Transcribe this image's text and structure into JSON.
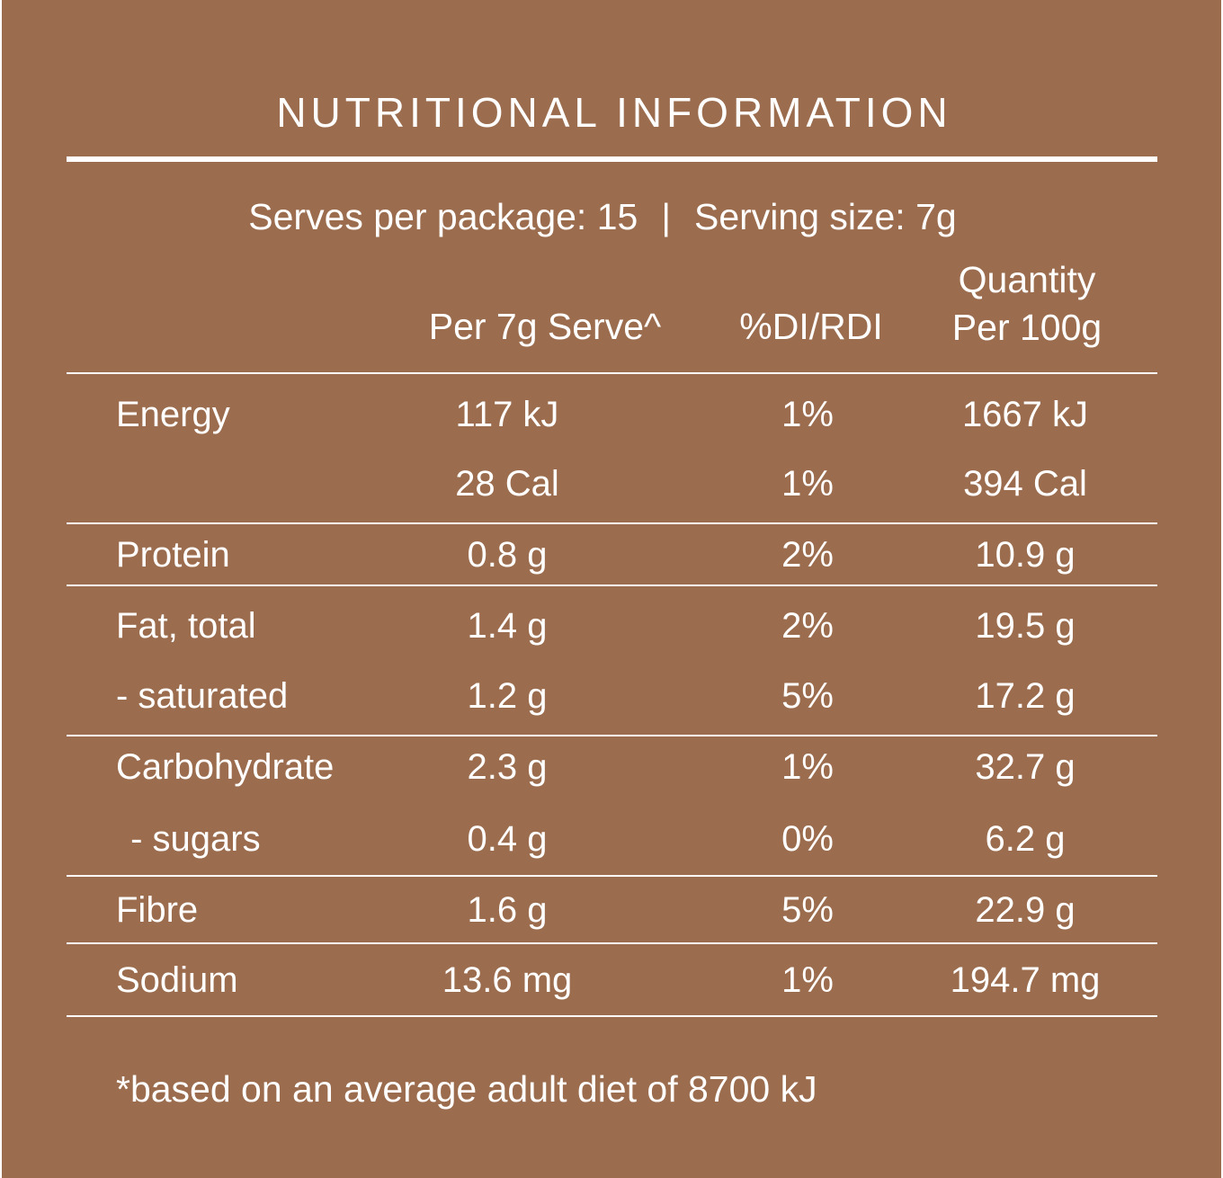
{
  "title": "NUTRITIONAL INFORMATION",
  "serving": {
    "serves_per_package": "Serves per package: 15",
    "separator": "|",
    "serving_size": "Serving size: 7g"
  },
  "columns": {
    "per_serve": "Per 7g Serve^",
    "di_rdi": "%DI/RDI",
    "per_100g_line1": "Quantity",
    "per_100g_line2": "Per 100g"
  },
  "rows": [
    {
      "name": "Energy",
      "per_serve": "117 kJ",
      "di": "1%",
      "per_100g": "1667 kJ"
    },
    {
      "name": "",
      "per_serve": "28 Cal",
      "di": "1%",
      "per_100g": "394 Cal"
    },
    {
      "name": "Protein",
      "per_serve": "0.8 g",
      "di": "2%",
      "per_100g": "10.9 g"
    },
    {
      "name": "Fat, total",
      "per_serve": "1.4 g",
      "di": "2%",
      "per_100g": "19.5 g"
    },
    {
      "name": "- saturated",
      "per_serve": "1.2 g",
      "di": "5%",
      "per_100g": "17.2 g"
    },
    {
      "name": "Carbohydrate",
      "per_serve": "2.3 g",
      "di": "1%",
      "per_100g": "32.7 g"
    },
    {
      "name": " - sugars",
      "per_serve": "0.4 g",
      "di": "0%",
      "per_100g": "6.2 g"
    },
    {
      "name": "Fibre",
      "per_serve": "1.6 g",
      "di": "5%",
      "per_100g": "22.9 g"
    },
    {
      "name": "Sodium",
      "per_serve": "13.6 mg",
      "di": "1%",
      "per_100g": "194.7 mg"
    }
  ],
  "footnote": "*based on an average adult diet of 8700 kJ",
  "colors": {
    "background": "#9b6c4d",
    "text": "#ffffff"
  }
}
